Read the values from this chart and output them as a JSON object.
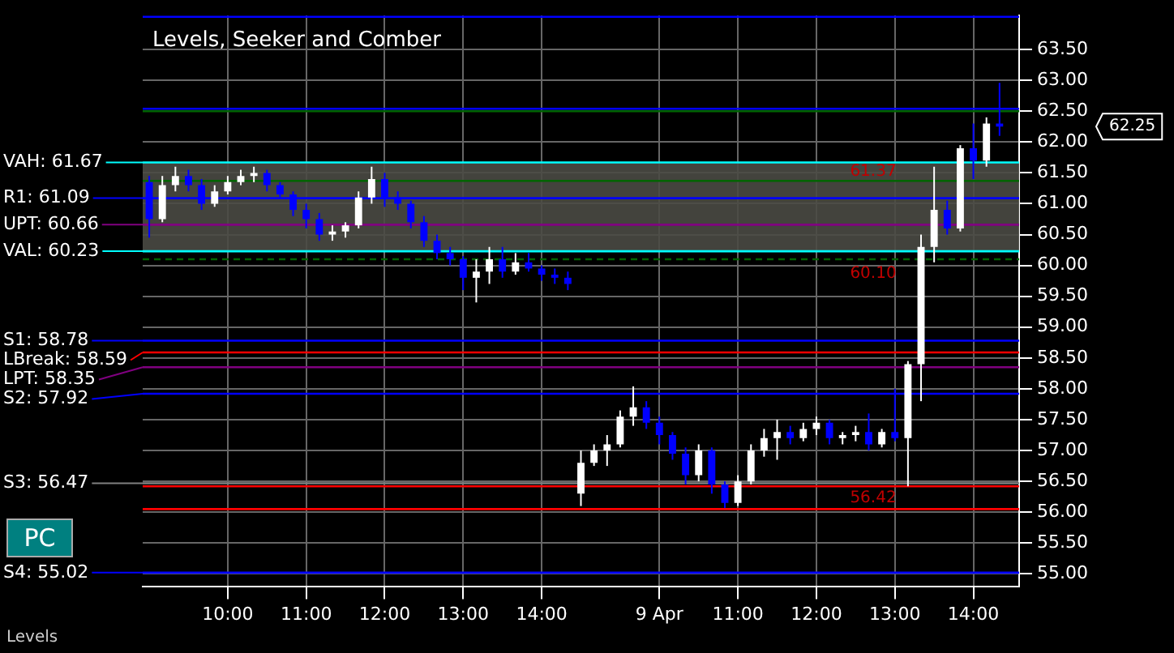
{
  "chart_data": {
    "type": "candlestick",
    "title": "Levels, Seeker and Comber",
    "categories": [
      null,
      null,
      null,
      null,
      null,
      null,
      "10:00",
      null,
      null,
      null,
      null,
      null,
      "11:00",
      null,
      null,
      null,
      null,
      null,
      "12:00",
      null,
      null,
      null,
      null,
      null,
      "13:00",
      null,
      null,
      null,
      null,
      null,
      "14:00",
      null,
      null,
      null,
      null,
      null,
      null,
      null,
      null,
      "9 Apr",
      null,
      null,
      null,
      null,
      null,
      "11:00",
      null,
      null,
      null,
      null,
      null,
      "12:00",
      null,
      null,
      null,
      null,
      null,
      "13:00",
      null,
      null,
      null,
      null,
      null,
      "14:00",
      null,
      null,
      null
    ],
    "ohlc": [
      [
        61.35,
        61.45,
        60.45,
        60.75
      ],
      [
        60.75,
        61.45,
        60.7,
        61.3
      ],
      [
        61.3,
        61.6,
        61.2,
        61.45
      ],
      [
        61.45,
        61.55,
        61.2,
        61.3
      ],
      [
        61.3,
        61.4,
        60.9,
        61.0
      ],
      [
        61.0,
        61.3,
        60.95,
        61.2
      ],
      [
        61.2,
        61.45,
        61.15,
        61.35
      ],
      [
        61.35,
        61.55,
        61.3,
        61.45
      ],
      [
        61.45,
        61.6,
        61.35,
        61.5
      ],
      [
        61.5,
        61.55,
        61.2,
        61.3
      ],
      [
        61.3,
        61.35,
        61.1,
        61.15
      ],
      [
        61.15,
        61.2,
        60.8,
        60.9
      ],
      [
        60.9,
        61.0,
        60.6,
        60.75
      ],
      [
        60.75,
        60.85,
        60.4,
        60.5
      ],
      [
        60.5,
        60.65,
        60.4,
        60.55
      ],
      [
        60.55,
        60.7,
        60.45,
        60.65
      ],
      [
        60.65,
        61.2,
        60.6,
        61.1
      ],
      [
        61.1,
        61.6,
        61.0,
        61.4
      ],
      [
        61.4,
        61.5,
        60.95,
        61.1
      ],
      [
        61.1,
        61.2,
        60.9,
        61.0
      ],
      [
        61.0,
        61.05,
        60.6,
        60.7
      ],
      [
        60.7,
        60.8,
        60.3,
        60.4
      ],
      [
        60.4,
        60.5,
        60.1,
        60.2
      ],
      [
        60.2,
        60.3,
        60.0,
        60.1
      ],
      [
        60.1,
        60.15,
        59.6,
        59.8
      ],
      [
        59.8,
        60.1,
        59.4,
        59.9
      ],
      [
        59.9,
        60.3,
        59.7,
        60.1
      ],
      [
        60.1,
        60.3,
        59.8,
        59.9
      ],
      [
        59.9,
        60.2,
        59.85,
        60.05
      ],
      [
        60.05,
        60.2,
        59.9,
        59.95
      ],
      [
        59.95,
        60.0,
        59.75,
        59.85
      ],
      [
        59.85,
        59.95,
        59.7,
        59.8
      ],
      [
        59.8,
        59.9,
        59.6,
        59.7
      ],
      [
        56.3,
        57.0,
        56.1,
        56.8
      ],
      [
        56.8,
        57.1,
        56.75,
        57.0
      ],
      [
        57.0,
        57.25,
        56.75,
        57.1
      ],
      [
        57.1,
        57.65,
        57.05,
        57.55
      ],
      [
        57.55,
        58.04,
        57.4,
        57.7
      ],
      [
        57.7,
        57.8,
        57.35,
        57.45
      ],
      [
        57.45,
        57.55,
        57.1,
        57.25
      ],
      [
        57.25,
        57.3,
        56.85,
        56.95
      ],
      [
        56.95,
        57.05,
        56.45,
        56.6
      ],
      [
        56.6,
        57.1,
        56.5,
        57.0
      ],
      [
        57.0,
        57.05,
        56.3,
        56.45
      ],
      [
        56.45,
        56.5,
        56.07,
        56.15
      ],
      [
        56.15,
        56.6,
        56.1,
        56.5
      ],
      [
        56.5,
        57.1,
        56.45,
        57.0
      ],
      [
        57.0,
        57.35,
        56.9,
        57.2
      ],
      [
        57.2,
        57.5,
        56.85,
        57.3
      ],
      [
        57.3,
        57.4,
        57.1,
        57.2
      ],
      [
        57.2,
        57.45,
        57.15,
        57.35
      ],
      [
        57.35,
        57.55,
        57.25,
        57.45
      ],
      [
        57.45,
        57.5,
        57.1,
        57.2
      ],
      [
        57.2,
        57.3,
        57.1,
        57.25
      ],
      [
        57.25,
        57.4,
        57.15,
        57.3
      ],
      [
        57.3,
        57.6,
        57.0,
        57.1
      ],
      [
        57.1,
        57.35,
        57.05,
        57.3
      ],
      [
        57.3,
        58.0,
        57.15,
        57.2
      ],
      [
        57.2,
        58.45,
        56.42,
        58.4
      ],
      [
        58.4,
        60.5,
        57.8,
        60.3
      ],
      [
        60.3,
        61.6,
        60.05,
        60.9
      ],
      [
        60.9,
        61.05,
        60.5,
        60.6
      ],
      [
        60.6,
        61.95,
        60.55,
        61.9
      ],
      [
        61.9,
        62.3,
        61.4,
        61.7
      ],
      [
        61.7,
        62.4,
        61.6,
        62.3
      ],
      [
        62.3,
        62.96,
        62.1,
        62.25
      ],
      null
    ],
    "colors": [
      "#0000ff",
      "#ffffff",
      "#ffffff",
      "#0000ff",
      "#0000ff",
      "#ffffff",
      "#ffffff",
      "#ffffff",
      "#ffffff",
      "#0000ff",
      "#0000ff",
      "#0000ff",
      "#0000ff",
      "#0000ff",
      "#ffffff",
      "#ffffff",
      "#ffffff",
      "#ffffff",
      "#0000ff",
      "#0000ff",
      "#0000ff",
      "#0000ff",
      "#0000ff",
      "#0000ff",
      "#0000ff",
      "#ffffff",
      "#ffffff",
      "#0000ff",
      "#ffffff",
      "#0000ff",
      "#0000ff",
      "#0000ff",
      "#0000ff",
      "#ffffff",
      "#ffffff",
      "#ffffff",
      "#ffffff",
      "#ffffff",
      "#0000ff",
      "#0000ff",
      "#0000ff",
      "#0000ff",
      "#ffffff",
      "#0000ff",
      "#0000ff",
      "#ffffff",
      "#ffffff",
      "#ffffff",
      "#ffffff",
      "#0000ff",
      "#ffffff",
      "#ffffff",
      "#0000ff",
      "#ffffff",
      "#ffffff",
      "#0000ff",
      "#ffffff",
      "#0000ff",
      "#ffffff",
      "#ffffff",
      "#ffffff",
      "#0000ff",
      "#ffffff",
      "#0000ff",
      "#ffffff",
      "#0000ff",
      null
    ],
    "ylim": [
      54.8,
      64.05
    ],
    "yticks": [
      {
        "value": 55,
        "label": "55.00"
      },
      {
        "value": 55.5,
        "label": "55.50"
      },
      {
        "value": 56,
        "label": "56.00"
      },
      {
        "value": 56.5,
        "label": "56.50"
      },
      {
        "value": 57,
        "label": "57.00"
      },
      {
        "value": 57.5,
        "label": "57.50"
      },
      {
        "value": 58,
        "label": "58.00"
      },
      {
        "value": 58.5,
        "label": "58.50"
      },
      {
        "value": 59,
        "label": "59.00"
      },
      {
        "value": 59.5,
        "label": "59.50"
      },
      {
        "value": 60,
        "label": "60.00"
      },
      {
        "value": 60.5,
        "label": "60.50"
      },
      {
        "value": 61,
        "label": "61.00"
      },
      {
        "value": 61.5,
        "label": "61.50"
      },
      {
        "value": 62,
        "label": "62.00"
      },
      {
        "value": 62.5,
        "label": "62.50"
      },
      {
        "value": 63,
        "label": "63.00"
      },
      {
        "value": 63.5,
        "label": "63.50"
      }
    ],
    "grid": true,
    "bands": [
      {
        "axis": "y",
        "from": 60.23,
        "to": 61.67,
        "label": null,
        "color": "#4a4a44"
      }
    ],
    "ref_lines": [
      {
        "axis": "y",
        "value": 64.03,
        "label": null,
        "color": "#0000ff"
      },
      {
        "axis": "y",
        "value": 62.54,
        "label": null,
        "color": "#0000ff"
      },
      {
        "axis": "y",
        "value": 62.5,
        "label": null,
        "color": "#006400"
      },
      {
        "axis": "y",
        "value": 61.67,
        "label": "VAH: 61.67",
        "color": "#00ffff"
      },
      {
        "axis": "y",
        "value": 61.37,
        "label": null,
        "color": "#006400"
      },
      {
        "axis": "y",
        "value": 61.09,
        "label": "R1: 61.09",
        "color": "#0000ff"
      },
      {
        "axis": "y",
        "value": 60.66,
        "label": "UPT: 60.66",
        "color": "#800080"
      },
      {
        "axis": "y",
        "value": 60.23,
        "label": "VAL: 60.23",
        "color": "#00ffff"
      },
      {
        "axis": "y",
        "value": 60.1,
        "label": null,
        "color": "#006400",
        "line_style": "dashed"
      },
      {
        "axis": "y",
        "value": 58.78,
        "label": "S1: 58.78",
        "color": "#0000ff"
      },
      {
        "axis": "y",
        "value": 58.59,
        "label": "LBreak: 58.59",
        "color": "#ff0000"
      },
      {
        "axis": "y",
        "value": 58.35,
        "label": "LPT: 58.35",
        "color": "#800080"
      },
      {
        "axis": "y",
        "value": 57.92,
        "label": "S2: 57.92",
        "color": "#0000ff"
      },
      {
        "axis": "y",
        "value": 56.47,
        "label": "S3: 56.47",
        "color": "#808080"
      },
      {
        "axis": "y",
        "value": 56.42,
        "label": null,
        "color": "#ff0000"
      },
      {
        "axis": "y",
        "value": 56.05,
        "label": null,
        "color": "#ff0000"
      },
      {
        "axis": "y",
        "value": 55.02,
        "label": "S4: 55.02",
        "color": "#0000ff"
      }
    ],
    "annotations": [
      "Levels",
      "PC",
      "62.25",
      {
        "text": "61.37",
        "y": 61.37
      },
      {
        "text": "60.10",
        "y": 60.1
      },
      {
        "text": "56.42",
        "y": 56.42
      }
    ],
    "legend": false
  }
}
